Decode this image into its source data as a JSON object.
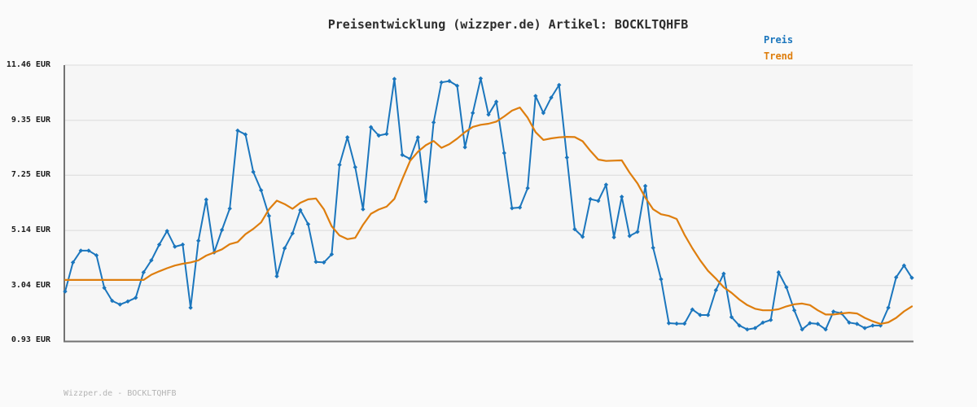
{
  "header": {
    "title": "Preisentwicklung (wizzper.de) Artikel: BOCKLTQHFB"
  },
  "legend": {
    "preis_label": "Preis",
    "trend_label": "Trend"
  },
  "footer": {
    "text": "Wizzper.de - BOCKLTQHFB"
  },
  "colors": {
    "preis": "#1b76bd",
    "trend": "#de7e0e",
    "background": "#fafafa",
    "plot_background": "#f6f6f6",
    "gridline": "#e2e2e2",
    "axis": "#737373",
    "title_text": "#2d2d2d",
    "tick_text": "#1a1a1a",
    "footer_text": "#b4b4b4"
  },
  "chart_data": {
    "type": "line",
    "title": "Preisentwicklung (wizzper.de) Artikel: BOCKLTQHFB",
    "xlabel": "",
    "ylabel": "",
    "x_tick_labels_visible": false,
    "grid": "horizontal",
    "legend_position": "top-right",
    "y_axis": {
      "unit": "EUR",
      "range": [
        0.93,
        11.46
      ],
      "ticks": [
        {
          "label": "11.46 EUR",
          "value": 11.46
        },
        {
          "label": "9.35 EUR",
          "value": 9.35
        },
        {
          "label": "7.25 EUR",
          "value": 7.25
        },
        {
          "label": "5.14 EUR",
          "value": 5.14
        },
        {
          "label": "3.04 EUR",
          "value": 3.04
        },
        {
          "label": "0.93 EUR",
          "value": 0.93
        }
      ]
    },
    "series": [
      {
        "name": "Preis",
        "color": "#1b76bd",
        "marker": "diamond",
        "line_width": 2,
        "values": [
          2.81,
          3.92,
          4.37,
          4.37,
          4.19,
          2.95,
          2.45,
          2.31,
          2.43,
          2.57,
          3.54,
          4.0,
          4.6,
          5.12,
          4.52,
          4.6,
          2.19,
          4.75,
          6.32,
          4.3,
          5.16,
          5.98,
          8.96,
          8.81,
          7.38,
          6.68,
          5.7,
          3.39,
          4.46,
          5.03,
          5.92,
          5.38,
          3.94,
          3.92,
          4.23,
          7.65,
          8.7,
          7.56,
          5.95,
          9.09,
          8.77,
          8.83,
          10.93,
          8.03,
          7.88,
          8.7,
          6.25,
          9.27,
          10.8,
          10.85,
          10.67,
          8.32,
          9.63,
          10.95,
          9.57,
          10.06,
          8.1,
          5.99,
          6.02,
          6.76,
          10.28,
          9.63,
          10.22,
          10.7,
          7.93,
          5.19,
          4.9,
          6.34,
          6.27,
          6.89,
          4.88,
          6.43,
          4.93,
          5.09,
          6.84,
          4.48,
          3.28,
          1.6,
          1.58,
          1.58,
          2.12,
          1.91,
          1.91,
          2.86,
          3.49,
          1.83,
          1.51,
          1.36,
          1.41,
          1.62,
          1.72,
          3.54,
          2.97,
          2.09,
          1.36,
          1.6,
          1.57,
          1.36,
          2.04,
          1.98,
          1.62,
          1.57,
          1.41,
          1.51,
          1.51,
          2.19,
          3.35,
          3.8,
          3.33
        ]
      },
      {
        "name": "Trend",
        "color": "#de7e0e",
        "marker": "none",
        "line_width": 2.2,
        "values": [
          3.25,
          3.25,
          3.25,
          3.25,
          3.25,
          3.25,
          3.25,
          3.25,
          3.25,
          3.25,
          3.25,
          3.45,
          3.58,
          3.7,
          3.8,
          3.87,
          3.92,
          4.0,
          4.18,
          4.3,
          4.42,
          4.62,
          4.7,
          5.0,
          5.2,
          5.45,
          5.95,
          6.28,
          6.15,
          5.97,
          6.2,
          6.33,
          6.36,
          5.95,
          5.3,
          4.95,
          4.81,
          4.86,
          5.36,
          5.78,
          5.94,
          6.05,
          6.35,
          7.1,
          7.8,
          8.15,
          8.4,
          8.56,
          8.3,
          8.44,
          8.65,
          8.9,
          9.1,
          9.18,
          9.22,
          9.3,
          9.5,
          9.72,
          9.84,
          9.45,
          8.9,
          8.6,
          8.66,
          8.7,
          8.72,
          8.71,
          8.55,
          8.18,
          7.85,
          7.8,
          7.81,
          7.82,
          7.35,
          6.94,
          6.4,
          5.95,
          5.76,
          5.7,
          5.58,
          4.98,
          4.46,
          4.0,
          3.6,
          3.3,
          2.97,
          2.76,
          2.5,
          2.29,
          2.15,
          2.09,
          2.09,
          2.13,
          2.24,
          2.32,
          2.35,
          2.29,
          2.09,
          1.93,
          1.93,
          1.97,
          2.0,
          1.97,
          1.8,
          1.67,
          1.57,
          1.63,
          1.8,
          2.05,
          2.24
        ]
      }
    ]
  }
}
